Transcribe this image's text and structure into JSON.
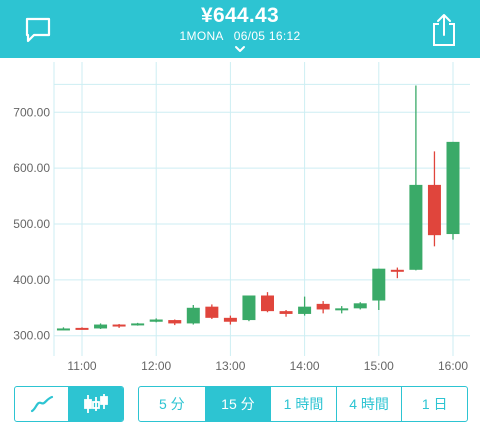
{
  "header": {
    "price": "¥644.43",
    "pair": "1MONA",
    "datetime": "06/05 16:12"
  },
  "colors": {
    "accent": "#2dc4d2",
    "up": "#3aaa68",
    "down": "#e0453c",
    "grid": "#cdeef3",
    "axis_text": "#666666"
  },
  "chart_data": {
    "type": "candlestick",
    "interval": "15 分",
    "x_ticks": [
      "11:00",
      "12:00",
      "13:00",
      "14:00",
      "15:00",
      "16:00"
    ],
    "y_ticks": [
      "300.00",
      "400.00",
      "500.00",
      "600.00",
      "700.00"
    ],
    "ylim": [
      278,
      790
    ],
    "candles": [
      {
        "time": "10:45",
        "open": 312,
        "high": 315,
        "low": 310,
        "close": 313
      },
      {
        "time": "11:00",
        "open": 314,
        "high": 315,
        "low": 311,
        "close": 313
      },
      {
        "time": "11:15",
        "open": 313,
        "high": 322,
        "low": 312,
        "close": 320
      },
      {
        "time": "11:30",
        "open": 320,
        "high": 321,
        "low": 314,
        "close": 319
      },
      {
        "time": "11:45",
        "open": 319,
        "high": 323,
        "low": 318,
        "close": 322
      },
      {
        "time": "12:00",
        "open": 325,
        "high": 331,
        "low": 324,
        "close": 329
      },
      {
        "time": "12:15",
        "open": 328,
        "high": 329,
        "low": 319,
        "close": 322
      },
      {
        "time": "12:30",
        "open": 322,
        "high": 355,
        "low": 320,
        "close": 350
      },
      {
        "time": "12:45",
        "open": 352,
        "high": 356,
        "low": 330,
        "close": 332
      },
      {
        "time": "13:00",
        "open": 332,
        "high": 336,
        "low": 320,
        "close": 325
      },
      {
        "time": "13:15",
        "open": 328,
        "high": 372,
        "low": 326,
        "close": 372
      },
      {
        "time": "13:30",
        "open": 372,
        "high": 378,
        "low": 342,
        "close": 344
      },
      {
        "time": "13:45",
        "open": 344,
        "high": 346,
        "low": 334,
        "close": 339
      },
      {
        "time": "14:00",
        "open": 339,
        "high": 370,
        "low": 336,
        "close": 352
      },
      {
        "time": "14:15",
        "open": 357,
        "high": 362,
        "low": 340,
        "close": 347
      },
      {
        "time": "14:30",
        "open": 346,
        "high": 353,
        "low": 340,
        "close": 349
      },
      {
        "time": "14:45",
        "open": 349,
        "high": 360,
        "low": 347,
        "close": 358
      },
      {
        "time": "15:00",
        "open": 363,
        "high": 420,
        "low": 346,
        "close": 420
      },
      {
        "time": "15:15",
        "open": 418,
        "high": 422,
        "low": 403,
        "close": 417
      },
      {
        "time": "15:30",
        "open": 418,
        "high": 748,
        "low": 417,
        "close": 570
      },
      {
        "time": "15:45",
        "open": 570,
        "high": 630,
        "low": 460,
        "close": 480
      },
      {
        "time": "16:00",
        "open": 482,
        "high": 647,
        "low": 472,
        "close": 647
      }
    ]
  },
  "chart_mode": {
    "line_icon": "line-chart-icon",
    "candle_icon": "candlestick-icon",
    "active": "candle"
  },
  "intervals": [
    {
      "label": "5 分",
      "active": false
    },
    {
      "label": "15 分",
      "active": true
    },
    {
      "label": "1 時間",
      "active": false
    },
    {
      "label": "4 時間",
      "active": false
    },
    {
      "label": "1 日",
      "active": false
    }
  ]
}
